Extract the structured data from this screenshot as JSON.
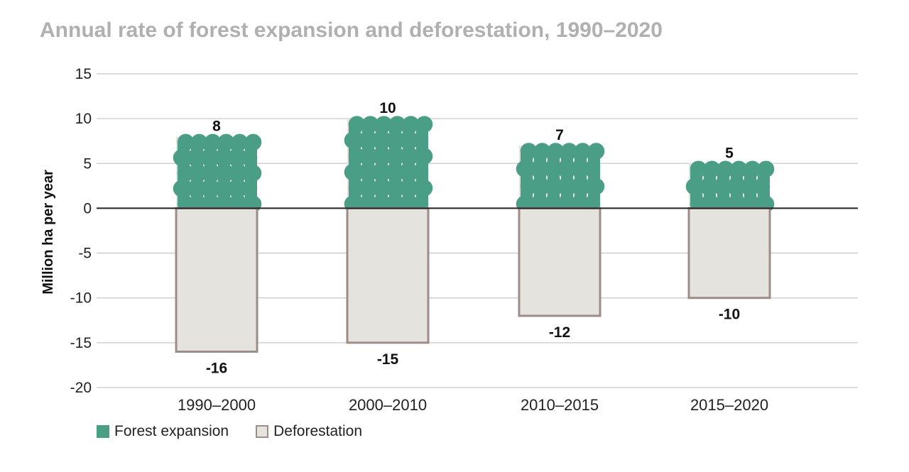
{
  "chart_data": {
    "type": "bar",
    "title": "Annual rate of forest expansion and deforestation, 1990–2020",
    "ylabel": "Million ha per year",
    "xlabel": "",
    "ylim": [
      -20,
      15
    ],
    "yticks": [
      15,
      10,
      5,
      0,
      -5,
      -10,
      -15,
      -20
    ],
    "categories": [
      "1990–2000",
      "2000–2010",
      "2010–2015",
      "2015–2020"
    ],
    "series": [
      {
        "name": "Forest expansion",
        "values": [
          8,
          10,
          7,
          5
        ],
        "labels": [
          "8",
          "10",
          "7",
          "5"
        ],
        "color": "#4a9e86"
      },
      {
        "name": "Deforestation",
        "values": [
          -16,
          -15,
          -12,
          -10
        ],
        "labels": [
          "-16",
          "-15",
          "-12",
          "-10"
        ],
        "color": "#e4e3dd",
        "edge": "#9e8c88"
      }
    ],
    "grid": true,
    "legend": "bottom-left"
  },
  "colors": {
    "title": "#b0b0b0",
    "grid": "#c8c8c8",
    "zero_line": "#222222",
    "bar_background": "#e4e3dd"
  }
}
